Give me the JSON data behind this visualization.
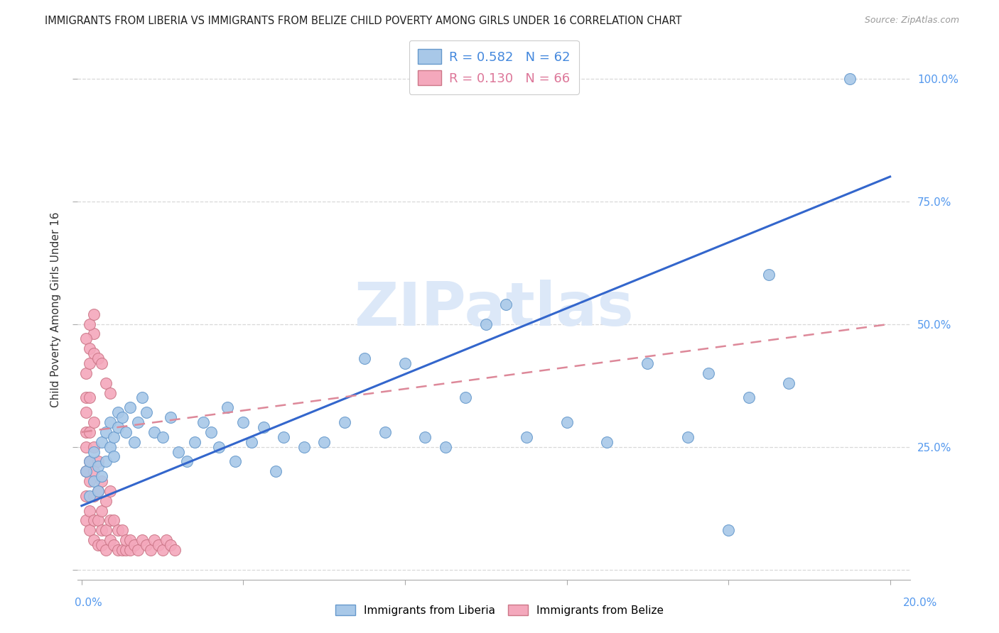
{
  "title": "IMMIGRANTS FROM LIBERIA VS IMMIGRANTS FROM BELIZE CHILD POVERTY AMONG GIRLS UNDER 16 CORRELATION CHART",
  "source": "Source: ZipAtlas.com",
  "ylabel": "Child Poverty Among Girls Under 16",
  "y_tick_positions": [
    0.0,
    0.25,
    0.5,
    0.75,
    1.0
  ],
  "y_tick_labels_right": [
    "",
    "25.0%",
    "50.0%",
    "75.0%",
    "100.0%"
  ],
  "x_tick_positions": [
    0.0,
    0.04,
    0.08,
    0.12,
    0.16,
    0.2
  ],
  "xlim": [
    -0.001,
    0.205
  ],
  "ylim": [
    -0.02,
    1.08
  ],
  "liberia_R": 0.582,
  "liberia_N": 62,
  "belize_R": 0.13,
  "belize_N": 66,
  "liberia_color": "#a8c8e8",
  "liberia_edge": "#6699cc",
  "belize_color": "#f4a8bc",
  "belize_edge": "#cc7788",
  "line_liberia_color": "#3366cc",
  "line_belize_color": "#dd8899",
  "watermark": "ZIPatlas",
  "watermark_color": "#dce8f8",
  "background_color": "#ffffff",
  "legend_color_liberia": "#4488dd",
  "legend_color_belize": "#dd7799",
  "liberia_x": [
    0.001,
    0.002,
    0.002,
    0.003,
    0.003,
    0.004,
    0.004,
    0.005,
    0.005,
    0.006,
    0.006,
    0.007,
    0.007,
    0.008,
    0.008,
    0.009,
    0.009,
    0.01,
    0.011,
    0.012,
    0.013,
    0.014,
    0.015,
    0.016,
    0.018,
    0.02,
    0.022,
    0.024,
    0.026,
    0.028,
    0.03,
    0.032,
    0.034,
    0.036,
    0.038,
    0.04,
    0.042,
    0.045,
    0.048,
    0.05,
    0.055,
    0.06,
    0.065,
    0.07,
    0.075,
    0.08,
    0.085,
    0.09,
    0.095,
    0.1,
    0.105,
    0.11,
    0.12,
    0.13,
    0.14,
    0.15,
    0.155,
    0.16,
    0.165,
    0.17,
    0.175,
    0.19
  ],
  "liberia_y": [
    0.2,
    0.15,
    0.22,
    0.18,
    0.24,
    0.21,
    0.16,
    0.19,
    0.26,
    0.22,
    0.28,
    0.25,
    0.3,
    0.23,
    0.27,
    0.32,
    0.29,
    0.31,
    0.28,
    0.33,
    0.26,
    0.3,
    0.35,
    0.32,
    0.28,
    0.27,
    0.31,
    0.24,
    0.22,
    0.26,
    0.3,
    0.28,
    0.25,
    0.33,
    0.22,
    0.3,
    0.26,
    0.29,
    0.2,
    0.27,
    0.25,
    0.26,
    0.3,
    0.43,
    0.28,
    0.42,
    0.27,
    0.25,
    0.35,
    0.5,
    0.54,
    0.27,
    0.3,
    0.26,
    0.42,
    0.27,
    0.4,
    0.08,
    0.35,
    0.6,
    0.38,
    1.0
  ],
  "belize_x": [
    0.001,
    0.001,
    0.001,
    0.001,
    0.001,
    0.001,
    0.001,
    0.001,
    0.002,
    0.002,
    0.002,
    0.002,
    0.002,
    0.002,
    0.002,
    0.003,
    0.003,
    0.003,
    0.003,
    0.003,
    0.003,
    0.003,
    0.004,
    0.004,
    0.004,
    0.004,
    0.005,
    0.005,
    0.005,
    0.005,
    0.006,
    0.006,
    0.006,
    0.007,
    0.007,
    0.007,
    0.008,
    0.008,
    0.009,
    0.009,
    0.01,
    0.01,
    0.011,
    0.011,
    0.012,
    0.012,
    0.013,
    0.014,
    0.015,
    0.016,
    0.017,
    0.018,
    0.019,
    0.02,
    0.021,
    0.022,
    0.023,
    0.001,
    0.002,
    0.003,
    0.004,
    0.005,
    0.006,
    0.007,
    0.002,
    0.003
  ],
  "belize_y": [
    0.1,
    0.15,
    0.2,
    0.25,
    0.28,
    0.32,
    0.35,
    0.4,
    0.08,
    0.12,
    0.18,
    0.22,
    0.28,
    0.35,
    0.42,
    0.06,
    0.1,
    0.15,
    0.2,
    0.25,
    0.3,
    0.48,
    0.05,
    0.1,
    0.16,
    0.22,
    0.05,
    0.08,
    0.12,
    0.18,
    0.04,
    0.08,
    0.14,
    0.06,
    0.1,
    0.16,
    0.05,
    0.1,
    0.04,
    0.08,
    0.04,
    0.08,
    0.04,
    0.06,
    0.04,
    0.06,
    0.05,
    0.04,
    0.06,
    0.05,
    0.04,
    0.06,
    0.05,
    0.04,
    0.06,
    0.05,
    0.04,
    0.47,
    0.45,
    0.44,
    0.43,
    0.42,
    0.38,
    0.36,
    0.5,
    0.52
  ],
  "line_liberia_x0": 0.0,
  "line_liberia_y0": 0.13,
  "line_liberia_x1": 0.2,
  "line_liberia_y1": 0.8,
  "line_belize_x0": 0.0,
  "line_belize_y0": 0.28,
  "line_belize_x1": 0.2,
  "line_belize_y1": 0.5
}
